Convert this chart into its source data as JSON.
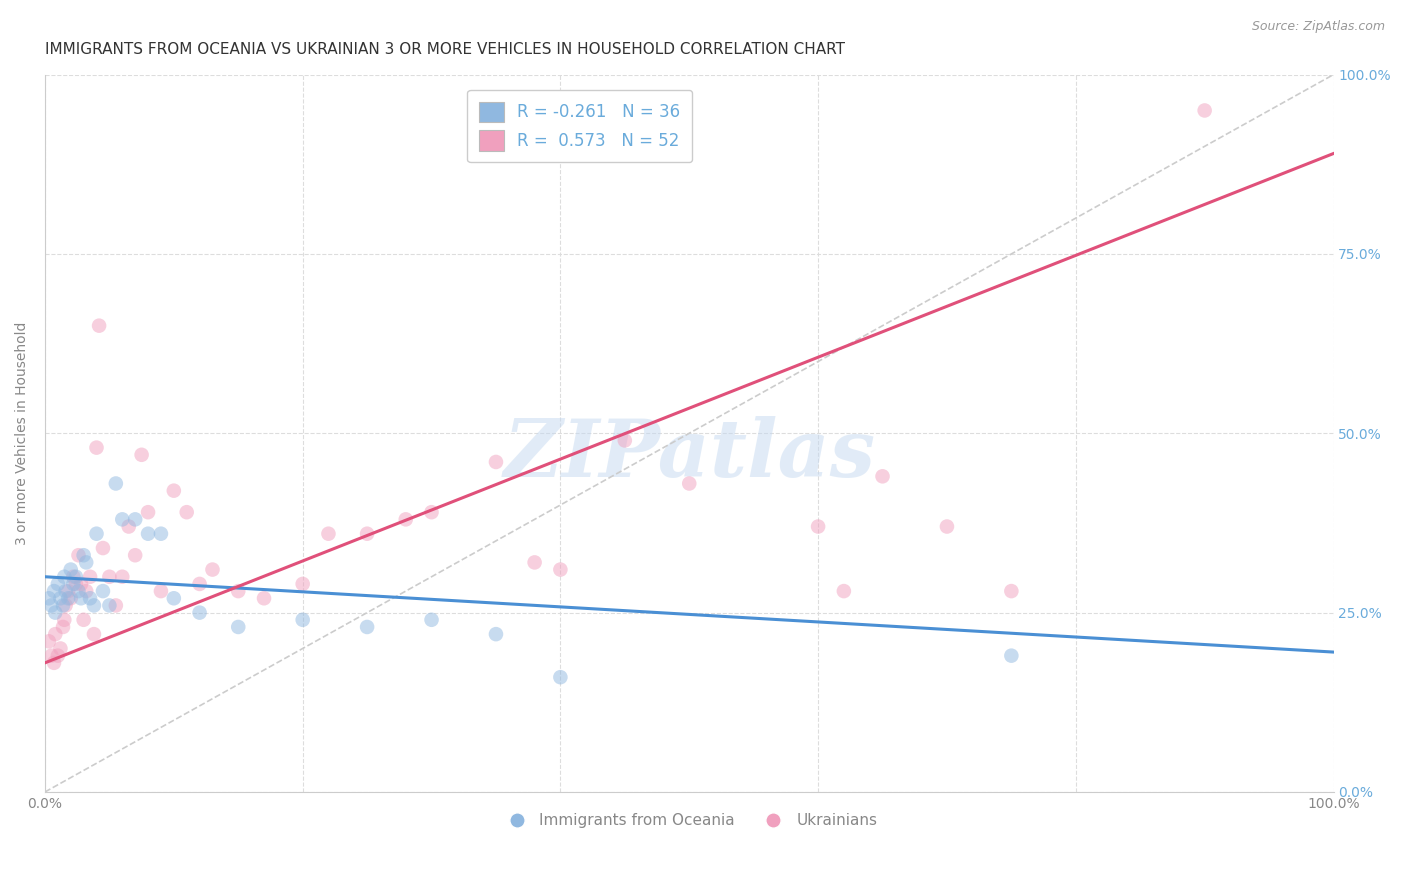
{
  "title": "IMMIGRANTS FROM OCEANIA VS UKRAINIAN 3 OR MORE VEHICLES IN HOUSEHOLD CORRELATION CHART",
  "source": "Source: ZipAtlas.com",
  "ylabel": "3 or more Vehicles in Household",
  "xlim": [
    0,
    100
  ],
  "ylim": [
    0,
    100
  ],
  "ytick_values": [
    0,
    25,
    50,
    75,
    100
  ],
  "xtick_values": [
    0,
    20,
    40,
    60,
    80,
    100
  ],
  "watermark": "ZIPatlas",
  "legend_title_blue": "Immigrants from Oceania",
  "legend_title_pink": "Ukrainians",
  "blue_trend_x0": 0,
  "blue_trend_y0": 30.0,
  "blue_trend_x1": 100,
  "blue_trend_y1": 19.5,
  "pink_trend_x0": 0,
  "pink_trend_y0": 18.0,
  "pink_trend_x1": 100,
  "pink_trend_y1": 89.0,
  "dashed_x0": 0,
  "dashed_y0": 0,
  "dashed_x1": 100,
  "dashed_y1": 100,
  "blue_scatter_x": [
    0.3,
    0.5,
    0.7,
    0.8,
    1.0,
    1.2,
    1.4,
    1.5,
    1.6,
    1.8,
    2.0,
    2.2,
    2.4,
    2.6,
    2.8,
    3.0,
    3.2,
    3.5,
    3.8,
    4.0,
    4.5,
    5.0,
    5.5,
    6.0,
    7.0,
    8.0,
    9.0,
    10.0,
    12.0,
    15.0,
    20.0,
    25.0,
    30.0,
    35.0,
    40.0,
    75.0
  ],
  "blue_scatter_y": [
    27,
    26,
    28,
    25,
    29,
    27,
    26,
    30,
    28,
    27,
    31,
    29,
    30,
    28,
    27,
    33,
    32,
    27,
    26,
    36,
    28,
    26,
    43,
    38,
    38,
    36,
    36,
    27,
    25,
    23,
    24,
    23,
    24,
    22,
    16,
    19
  ],
  "pink_scatter_x": [
    0.3,
    0.5,
    0.7,
    0.8,
    1.0,
    1.2,
    1.4,
    1.5,
    1.6,
    1.8,
    2.0,
    2.2,
    2.4,
    2.6,
    2.8,
    3.0,
    3.2,
    3.5,
    3.8,
    4.0,
    4.2,
    4.5,
    5.0,
    5.5,
    6.0,
    6.5,
    7.0,
    7.5,
    8.0,
    9.0,
    10.0,
    11.0,
    12.0,
    13.0,
    15.0,
    17.0,
    20.0,
    22.0,
    25.0,
    28.0,
    30.0,
    35.0,
    38.0,
    40.0,
    45.0,
    50.0,
    60.0,
    62.0,
    65.0,
    70.0,
    75.0,
    90.0
  ],
  "pink_scatter_y": [
    21,
    19,
    18,
    22,
    19,
    20,
    23,
    24,
    26,
    28,
    27,
    30,
    29,
    33,
    29,
    24,
    28,
    30,
    22,
    48,
    65,
    34,
    30,
    26,
    30,
    37,
    33,
    47,
    39,
    28,
    42,
    39,
    29,
    31,
    28,
    27,
    29,
    36,
    36,
    38,
    39,
    46,
    32,
    31,
    49,
    43,
    37,
    28,
    44,
    37,
    28,
    95
  ],
  "title_fontsize": 11,
  "axis_label_fontsize": 10,
  "tick_fontsize": 10,
  "source_fontsize": 9,
  "scatter_size": 110,
  "scatter_alpha": 0.5,
  "blue_color": "#90b8e0",
  "pink_color": "#f0a0be",
  "blue_line_color": "#4a8fd4",
  "pink_line_color": "#e0507a",
  "dashed_line_color": "#cccccc",
  "grid_color": "#dddddd",
  "background_color": "#ffffff",
  "right_axis_color": "#6aabdb",
  "watermark_color": "#c5d9f0",
  "watermark_alpha": 0.5
}
